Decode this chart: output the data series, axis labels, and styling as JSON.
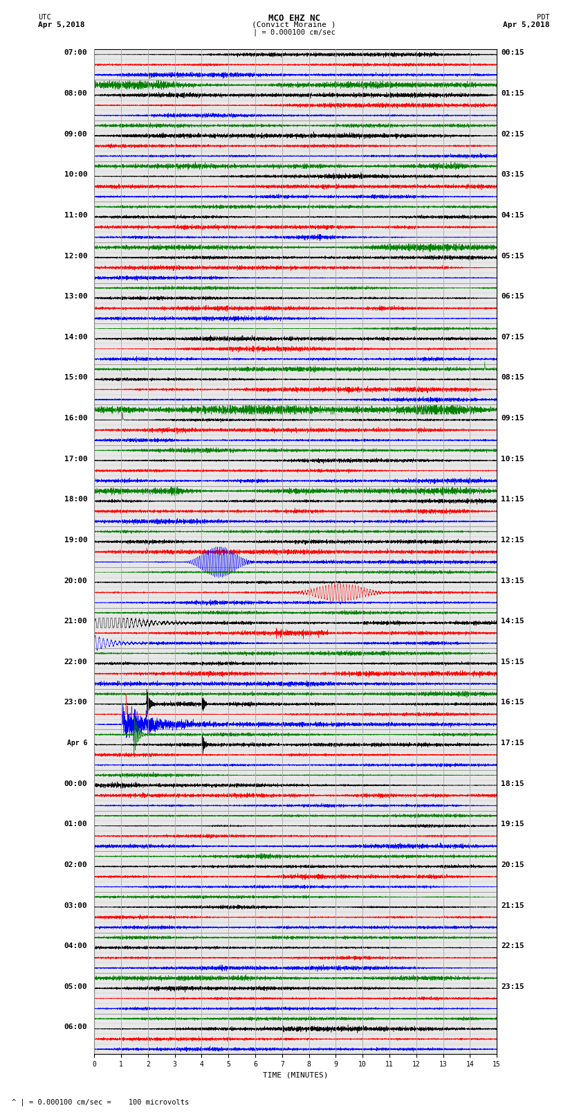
{
  "title_line1": "MCO EHZ NC",
  "title_line2": "(Convict Moraine )",
  "scale_label": "| = 0.000100 cm/sec",
  "footer_text": "^ | = 0.000100 cm/sec =    100 microvolts",
  "utc_label": "UTC",
  "utc_date": "Apr 5,2018",
  "pdt_label": "PDT",
  "pdt_date": "Apr 5,2018",
  "xlabel": "TIME (MINUTES)",
  "fig_width": 8.5,
  "fig_height": 16.13,
  "dpi": 100,
  "bg_color": "#ffffff",
  "plot_bg_color": "#e8e8e8",
  "trace_colors": [
    "black",
    "red",
    "blue",
    "green"
  ],
  "left_times": [
    "07:00",
    "",
    "",
    "",
    "08:00",
    "",
    "",
    "",
    "09:00",
    "",
    "",
    "",
    "10:00",
    "",
    "",
    "",
    "11:00",
    "",
    "",
    "",
    "12:00",
    "",
    "",
    "",
    "13:00",
    "",
    "",
    "",
    "14:00",
    "",
    "",
    "",
    "15:00",
    "",
    "",
    "",
    "16:00",
    "",
    "",
    "",
    "17:00",
    "",
    "",
    "",
    "18:00",
    "",
    "",
    "",
    "19:00",
    "",
    "",
    "",
    "20:00",
    "",
    "",
    "",
    "21:00",
    "",
    "",
    "",
    "22:00",
    "",
    "",
    "",
    "23:00",
    "",
    "",
    "",
    "Apr 6",
    "",
    "",
    "",
    "00:00",
    "",
    "",
    "",
    "01:00",
    "",
    "",
    "",
    "02:00",
    "",
    "",
    "",
    "03:00",
    "",
    "",
    "",
    "04:00",
    "",
    "",
    "",
    "05:00",
    "",
    "",
    "",
    "06:00",
    "",
    ""
  ],
  "right_times": [
    "00:15",
    "",
    "",
    "",
    "01:15",
    "",
    "",
    "",
    "02:15",
    "",
    "",
    "",
    "03:15",
    "",
    "",
    "",
    "04:15",
    "",
    "",
    "",
    "05:15",
    "",
    "",
    "",
    "06:15",
    "",
    "",
    "",
    "07:15",
    "",
    "",
    "",
    "08:15",
    "",
    "",
    "",
    "09:15",
    "",
    "",
    "",
    "10:15",
    "",
    "",
    "",
    "11:15",
    "",
    "",
    "",
    "12:15",
    "",
    "",
    "",
    "13:15",
    "",
    "",
    "",
    "14:15",
    "",
    "",
    "",
    "15:15",
    "",
    "",
    "",
    "16:15",
    "",
    "",
    "",
    "17:15",
    "",
    "",
    "",
    "18:15",
    "",
    "",
    "",
    "19:15",
    "",
    "",
    "",
    "20:15",
    "",
    "",
    "",
    "21:15",
    "",
    "",
    "",
    "22:15",
    "",
    "",
    "",
    "23:15",
    "",
    ""
  ],
  "grid_color": "#aaaaaa",
  "grid_linewidth": 0.6,
  "trace_linewidth": 0.35,
  "base_noise": 0.12,
  "xmin": 0,
  "xmax": 15,
  "xticks": [
    0,
    1,
    2,
    3,
    4,
    5,
    6,
    7,
    8,
    9,
    10,
    11,
    12,
    13,
    14,
    15
  ]
}
